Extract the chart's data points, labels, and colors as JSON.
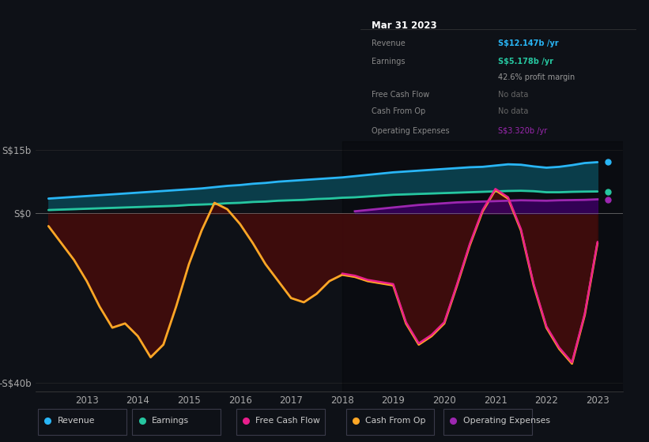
{
  "background_color": "#0e1117",
  "plot_bg_color": "#0e1117",
  "ylim": [
    -42,
    17
  ],
  "xlim": [
    2012.0,
    2023.5
  ],
  "x_years": [
    2012.25,
    2012.5,
    2012.75,
    2013,
    2013.25,
    2013.5,
    2013.75,
    2014,
    2014.25,
    2014.5,
    2014.75,
    2015,
    2015.25,
    2015.5,
    2015.75,
    2016,
    2016.25,
    2016.5,
    2016.75,
    2017,
    2017.25,
    2017.5,
    2017.75,
    2018,
    2018.25,
    2018.5,
    2018.75,
    2019,
    2019.25,
    2019.5,
    2019.75,
    2020,
    2020.25,
    2020.5,
    2020.75,
    2021,
    2021.25,
    2021.5,
    2021.75,
    2022,
    2022.25,
    2022.5,
    2022.75,
    2023
  ],
  "revenue": [
    3.5,
    3.7,
    3.9,
    4.1,
    4.3,
    4.5,
    4.7,
    4.9,
    5.1,
    5.3,
    5.5,
    5.7,
    5.9,
    6.2,
    6.5,
    6.7,
    7.0,
    7.2,
    7.5,
    7.7,
    7.9,
    8.1,
    8.3,
    8.5,
    8.8,
    9.1,
    9.4,
    9.7,
    9.9,
    10.1,
    10.3,
    10.5,
    10.7,
    10.9,
    11.0,
    11.3,
    11.6,
    11.5,
    11.1,
    10.8,
    11.0,
    11.4,
    11.9,
    12.1
  ],
  "earnings": [
    0.8,
    0.9,
    1.0,
    1.1,
    1.2,
    1.3,
    1.4,
    1.5,
    1.6,
    1.7,
    1.8,
    2.0,
    2.1,
    2.2,
    2.4,
    2.5,
    2.7,
    2.8,
    3.0,
    3.1,
    3.2,
    3.4,
    3.5,
    3.7,
    3.8,
    4.0,
    4.2,
    4.4,
    4.5,
    4.6,
    4.7,
    4.8,
    4.9,
    5.0,
    5.1,
    5.2,
    5.3,
    5.35,
    5.25,
    5.0,
    5.0,
    5.1,
    5.15,
    5.18
  ],
  "cash_from_op": [
    -3.0,
    -7.0,
    -11.0,
    -16.0,
    -22.0,
    -27.0,
    -26.0,
    -29.0,
    -34.0,
    -31.0,
    -22.0,
    -12.0,
    -4.0,
    2.5,
    1.0,
    -2.5,
    -7.0,
    -12.0,
    -16.0,
    -20.0,
    -21.0,
    -19.0,
    -16.0,
    -14.5,
    -15.0,
    -16.0,
    -16.5,
    -17.0,
    -26.0,
    -31.0,
    -29.0,
    -26.0,
    -17.0,
    -7.5,
    0.5,
    5.5,
    3.5,
    -4.0,
    -17.0,
    -27.0,
    -32.0,
    -35.5,
    -24.0,
    -7.0
  ],
  "op_expenses_line": [
    null,
    null,
    null,
    null,
    null,
    null,
    null,
    null,
    null,
    null,
    null,
    null,
    null,
    null,
    null,
    null,
    null,
    null,
    null,
    null,
    null,
    null,
    null,
    null,
    0.5,
    0.8,
    1.1,
    1.4,
    1.7,
    2.0,
    2.2,
    2.4,
    2.6,
    2.7,
    2.8,
    2.9,
    3.0,
    3.1,
    3.05,
    3.0,
    3.1,
    3.15,
    3.2,
    3.32
  ],
  "legend": [
    {
      "label": "Revenue",
      "color": "#29b6f6"
    },
    {
      "label": "Earnings",
      "color": "#26c6a0"
    },
    {
      "label": "Free Cash Flow",
      "color": "#e91e8c"
    },
    {
      "label": "Cash From Op",
      "color": "#ffa726"
    },
    {
      "label": "Operating Expenses",
      "color": "#9c27b0"
    }
  ]
}
